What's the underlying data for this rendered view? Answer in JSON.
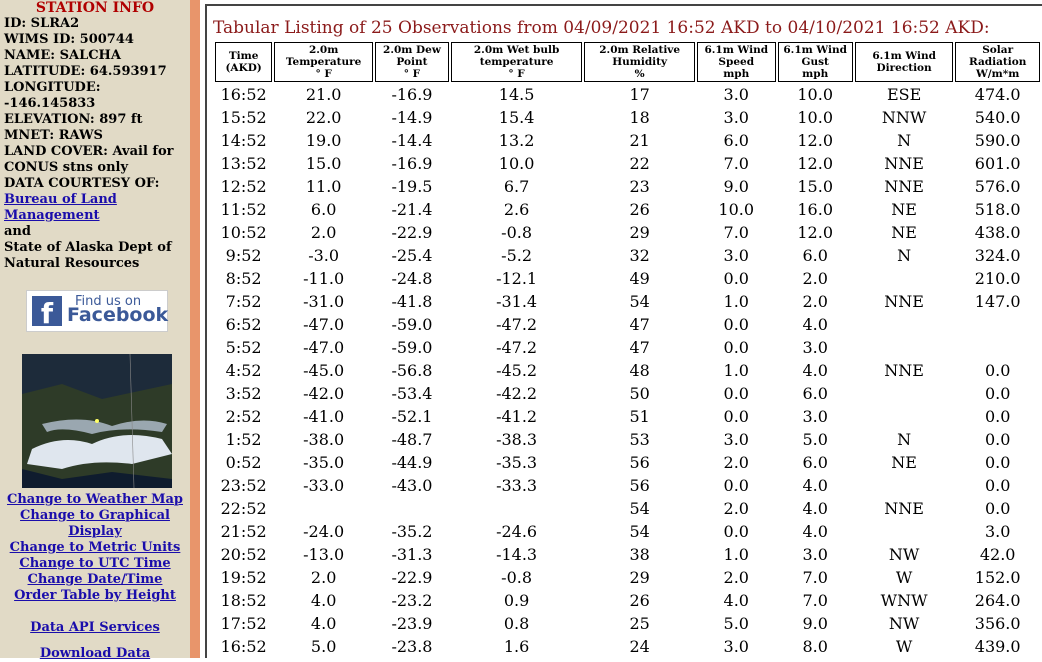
{
  "sidebar": {
    "title": "STATION INFO",
    "info": [
      "ID: SLRA2",
      "WIMS ID: 500744",
      "NAME: SALCHA",
      "LATITUDE: 64.593917",
      "LONGITUDE: -146.145833",
      "ELEVATION: 897 ft",
      "MNET: RAWS",
      "LAND COVER: Avail for CONUS stns only",
      "DATA COURTESY OF:"
    ],
    "courtesy_link": "Bureau of Land Management",
    "courtesy_and": "and",
    "courtesy_other": "State of Alaska Dept of Natural Resources",
    "facebook": {
      "line1": "Find us on",
      "line2": "Facebook",
      "icon": "f"
    },
    "links": [
      "Change to Weather Map",
      "Change to Graphical Display",
      "Change to Metric Units",
      "Change to UTC Time",
      "Change Date/Time",
      "Order Table by Height"
    ],
    "api_link": "Data API Services",
    "download_link": "Download Data"
  },
  "table": {
    "caption": "Tabular Listing of 25 Observations from 04/09/2021 16:52 AKD to 04/10/2021 16:52 AKD:",
    "headers": [
      [
        "Time",
        "(AKD)"
      ],
      [
        "2.0m",
        "Temperature",
        "° F"
      ],
      [
        "2.0m Dew",
        "Point",
        "° F"
      ],
      [
        "2.0m Wet bulb",
        "temperature",
        "° F"
      ],
      [
        "2.0m Relative",
        "Humidity",
        "%"
      ],
      [
        "6.1m Wind",
        "Speed",
        "mph"
      ],
      [
        "6.1m Wind",
        "Gust",
        "mph"
      ],
      [
        "6.1m Wind",
        "Direction"
      ],
      [
        "Solar",
        "Radiation",
        "W/m*m"
      ]
    ],
    "rows": [
      [
        "16:52",
        "21.0",
        "-16.9",
        "14.5",
        "17",
        "3.0",
        "10.0",
        "ESE",
        "474.0"
      ],
      [
        "15:52",
        "22.0",
        "-14.9",
        "15.4",
        "18",
        "3.0",
        "10.0",
        "NNW",
        "540.0"
      ],
      [
        "14:52",
        "19.0",
        "-14.4",
        "13.2",
        "21",
        "6.0",
        "12.0",
        "N",
        "590.0"
      ],
      [
        "13:52",
        "15.0",
        "-16.9",
        "10.0",
        "22",
        "7.0",
        "12.0",
        "NNE",
        "601.0"
      ],
      [
        "12:52",
        "11.0",
        "-19.5",
        "6.7",
        "23",
        "9.0",
        "15.0",
        "NNE",
        "576.0"
      ],
      [
        "11:52",
        "6.0",
        "-21.4",
        "2.6",
        "26",
        "10.0",
        "16.0",
        "NE",
        "518.0"
      ],
      [
        "10:52",
        "2.0",
        "-22.9",
        "-0.8",
        "29",
        "7.0",
        "12.0",
        "NE",
        "438.0"
      ],
      [
        "9:52",
        "-3.0",
        "-25.4",
        "-5.2",
        "32",
        "3.0",
        "6.0",
        "N",
        "324.0"
      ],
      [
        "8:52",
        "-11.0",
        "-24.8",
        "-12.1",
        "49",
        "0.0",
        "2.0",
        null,
        "210.0"
      ],
      [
        "7:52",
        "-31.0",
        "-41.8",
        "-31.4",
        "54",
        "1.0",
        "2.0",
        "NNE",
        "147.0"
      ],
      [
        "6:52",
        "-47.0",
        "-59.0",
        "-47.2",
        "47",
        "0.0",
        "4.0",
        null,
        null
      ],
      [
        "5:52",
        "-47.0",
        "-59.0",
        "-47.2",
        "47",
        "0.0",
        "3.0",
        null,
        null
      ],
      [
        "4:52",
        "-45.0",
        "-56.8",
        "-45.2",
        "48",
        "1.0",
        "4.0",
        "NNE",
        "0.0"
      ],
      [
        "3:52",
        "-42.0",
        "-53.4",
        "-42.2",
        "50",
        "0.0",
        "6.0",
        null,
        "0.0"
      ],
      [
        "2:52",
        "-41.0",
        "-52.1",
        "-41.2",
        "51",
        "0.0",
        "3.0",
        null,
        "0.0"
      ],
      [
        "1:52",
        "-38.0",
        "-48.7",
        "-38.3",
        "53",
        "3.0",
        "5.0",
        "N",
        "0.0"
      ],
      [
        "0:52",
        "-35.0",
        "-44.9",
        "-35.3",
        "56",
        "2.0",
        "6.0",
        "NE",
        "0.0"
      ],
      [
        "23:52",
        "-33.0",
        "-43.0",
        "-33.3",
        "56",
        "0.0",
        "4.0",
        null,
        "0.0"
      ],
      [
        "22:52",
        null,
        null,
        null,
        "54",
        "2.0",
        "4.0",
        "NNE",
        "0.0"
      ],
      [
        "21:52",
        "-24.0",
        "-35.2",
        "-24.6",
        "54",
        "0.0",
        "4.0",
        null,
        "3.0"
      ],
      [
        "20:52",
        "-13.0",
        "-31.3",
        "-14.3",
        "38",
        "1.0",
        "3.0",
        "NW",
        "42.0"
      ],
      [
        "19:52",
        "2.0",
        "-22.9",
        "-0.8",
        "29",
        "2.0",
        "7.0",
        "W",
        "152.0"
      ],
      [
        "18:52",
        "4.0",
        "-23.2",
        "0.9",
        "26",
        "4.0",
        "7.0",
        "WNW",
        "264.0"
      ],
      [
        "17:52",
        "4.0",
        "-23.9",
        "0.8",
        "25",
        "5.0",
        "9.0",
        "NW",
        "356.0"
      ],
      [
        "16:52",
        "5.0",
        "-23.8",
        "1.6",
        "24",
        "3.0",
        "8.0",
        "W",
        "439.0"
      ]
    ]
  }
}
